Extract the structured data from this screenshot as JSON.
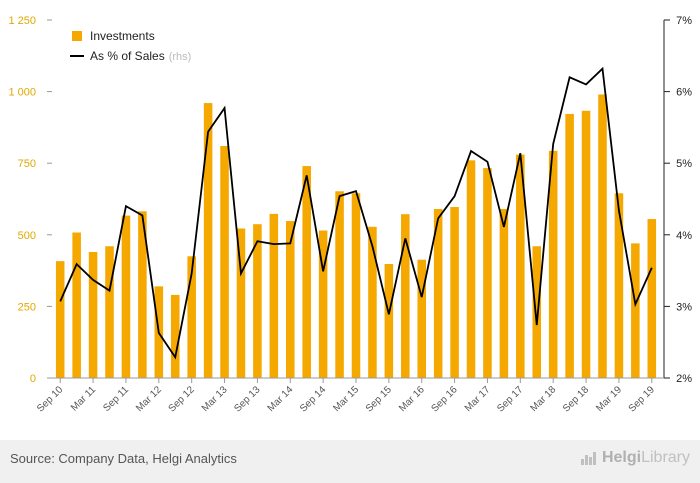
{
  "chart_data": {
    "type": "bar",
    "title": "",
    "xlabel": "",
    "ylabel": "",
    "x": [
      "Sep 10",
      "Dec 10",
      "Mar 11",
      "Jun 11",
      "Sep 11",
      "Dec 11",
      "Mar 12",
      "Jun 12",
      "Sep 12",
      "Dec 12",
      "Mar 13",
      "Jun 13",
      "Sep 13",
      "Dec 13",
      "Mar 14",
      "Jun 14",
      "Sep 14",
      "Dec 14",
      "Mar 15",
      "Jun 15",
      "Sep 15",
      "Dec 15",
      "Mar 16",
      "Jun 16",
      "Sep 16",
      "Dec 16",
      "Mar 17",
      "Jun 17",
      "Sep 17",
      "Dec 17",
      "Mar 18",
      "Jun 18",
      "Sep 18",
      "Dec 18",
      "Mar 19",
      "Jun 19",
      "Sep 19"
    ],
    "x_tick_labels": [
      "Sep 10",
      "Mar 11",
      "Sep 11",
      "Mar 12",
      "Sep 12",
      "Mar 13",
      "Sep 13",
      "Mar 14",
      "Sep 14",
      "Mar 15",
      "Sep 15",
      "Mar 16",
      "Sep 16",
      "Mar 17",
      "Sep 17",
      "Mar 18",
      "Sep 18",
      "Mar 19",
      "Sep 19"
    ],
    "series": [
      {
        "name": "Investments",
        "type": "bar",
        "axis": "left",
        "color": "#f5a800",
        "values": [
          408,
          508,
          440,
          460,
          567,
          582,
          320,
          290,
          425,
          960,
          810,
          522,
          537,
          573,
          548,
          740,
          515,
          652,
          645,
          528,
          398,
          572,
          413,
          590,
          597,
          760,
          733,
          590,
          780,
          460,
          793,
          922,
          933,
          990,
          645,
          470,
          555
        ]
      },
      {
        "name": "As % of Sales",
        "name_suffix": "(rhs)",
        "type": "line",
        "axis": "right",
        "color": "#000000",
        "values": [
          3.07,
          3.59,
          3.37,
          3.22,
          4.4,
          4.27,
          2.63,
          2.29,
          3.46,
          5.44,
          5.77,
          3.46,
          3.91,
          3.87,
          3.88,
          4.83,
          3.49,
          4.54,
          4.61,
          3.84,
          2.89,
          3.95,
          3.13,
          4.23,
          4.54,
          5.17,
          5.02,
          4.11,
          5.14,
          2.74,
          5.27,
          6.2,
          6.1,
          6.32,
          4.34,
          3.03,
          3.54
        ]
      }
    ],
    "y_left": {
      "ylim": [
        0,
        1250
      ],
      "ticks": [
        0,
        250,
        500,
        750,
        1000,
        1250
      ],
      "tick_labels": [
        "0",
        "250",
        "500",
        "750",
        "1 000",
        "1 250"
      ],
      "color": "#e0a800"
    },
    "y_right": {
      "ylim": [
        2,
        7
      ],
      "ticks": [
        2,
        3,
        4,
        5,
        6,
        7
      ],
      "tick_labels": [
        "2%",
        "3%",
        "4%",
        "5%",
        "6%",
        "7%"
      ]
    },
    "grid": false,
    "legend": "top-left"
  },
  "footer": {
    "source": "Source: Company Data, Helgi Analytics",
    "logo_prefix": "Helgi",
    "logo_suffix": "Library",
    "logo_icon": "helgi-logo-icon"
  }
}
